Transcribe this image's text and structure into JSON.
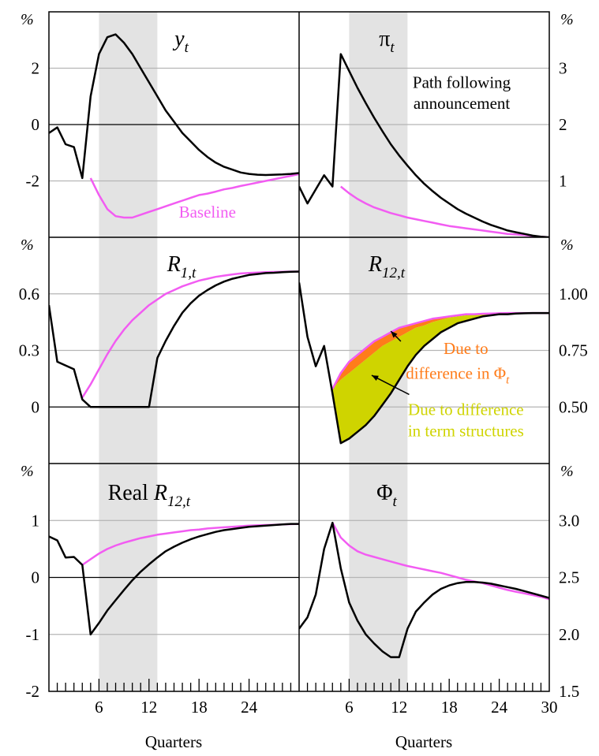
{
  "colors": {
    "path": "#000000",
    "baseline": "#f25cf2",
    "shade": "#e3e3e3",
    "grid": "#b5b5b5",
    "orange": "#ff7c1a",
    "yellow": "#cfd400"
  },
  "x_axis": {
    "label": "Quarters",
    "range": [
      0,
      30
    ],
    "left_ticks": [
      6,
      12,
      18,
      24
    ],
    "right_ticks": [
      6,
      12,
      18,
      24,
      30
    ],
    "minor_tick_step": 1,
    "shaded_range": [
      6,
      13
    ]
  },
  "chart_data": [
    {
      "type": "line",
      "title": "y",
      "subscript": "t",
      "unit": "%",
      "ylim": [
        -4,
        4
      ],
      "yticks": [
        -2,
        0,
        2
      ],
      "x": [
        0,
        1,
        2,
        3,
        4,
        5,
        6,
        7,
        8,
        9,
        10,
        11,
        12,
        13,
        14,
        15,
        16,
        17,
        18,
        19,
        20,
        21,
        22,
        23,
        24,
        25,
        26,
        27,
        28,
        29,
        30
      ],
      "series": [
        {
          "name": "",
          "style": "path",
          "values": [
            -0.3,
            -0.1,
            -0.7,
            -0.8,
            -1.9,
            1.0,
            2.5,
            3.1,
            3.2,
            2.9,
            2.5,
            2.0,
            1.5,
            1.0,
            0.5,
            0.1,
            -0.3,
            -0.6,
            -0.9,
            -1.15,
            -1.35,
            -1.5,
            -1.6,
            -1.7,
            -1.75,
            -1.78,
            -1.79,
            -1.78,
            -1.77,
            -1.75,
            -1.72
          ]
        },
        {
          "name": "Baseline",
          "style": "baseline",
          "values": [
            null,
            null,
            null,
            null,
            null,
            -1.9,
            -2.5,
            -3.0,
            -3.25,
            -3.3,
            -3.3,
            -3.2,
            -3.1,
            -3.0,
            -2.9,
            -2.8,
            -2.7,
            -2.6,
            -2.5,
            -2.45,
            -2.38,
            -2.3,
            -2.25,
            -2.18,
            -2.12,
            -2.06,
            -2.0,
            -1.94,
            -1.88,
            -1.82,
            -1.76
          ]
        }
      ],
      "annotations": [
        {
          "text": "Baseline",
          "x": 19,
          "y": -3.3,
          "color": "baseline"
        }
      ]
    },
    {
      "type": "line",
      "title": "π",
      "subscript": "t",
      "unit": "%",
      "ylim": [
        0,
        4
      ],
      "yticks": [
        1,
        2,
        3
      ],
      "x": [
        0,
        1,
        2,
        3,
        4,
        5,
        6,
        7,
        8,
        9,
        10,
        11,
        12,
        13,
        14,
        15,
        16,
        17,
        18,
        19,
        20,
        21,
        22,
        23,
        24,
        25,
        26,
        27,
        28,
        29,
        30
      ],
      "series": [
        {
          "name": "",
          "style": "path",
          "values": [
            0.9,
            0.6,
            0.85,
            1.1,
            0.9,
            3.25,
            2.95,
            2.65,
            2.38,
            2.12,
            1.88,
            1.65,
            1.45,
            1.27,
            1.1,
            0.95,
            0.82,
            0.7,
            0.6,
            0.5,
            0.42,
            0.35,
            0.28,
            0.22,
            0.17,
            0.12,
            0.09,
            0.06,
            0.03,
            0.01,
            0.0
          ]
        },
        {
          "name": "",
          "style": "baseline",
          "values": [
            null,
            null,
            null,
            null,
            null,
            0.9,
            0.78,
            0.68,
            0.6,
            0.53,
            0.48,
            0.43,
            0.39,
            0.35,
            0.32,
            0.29,
            0.26,
            0.23,
            0.2,
            0.18,
            0.16,
            0.14,
            0.12,
            0.1,
            0.08,
            0.06,
            0.05,
            0.04,
            0.02,
            0.01,
            0.0
          ]
        }
      ],
      "annotations": [
        {
          "text": "Path following",
          "x": 19.5,
          "y": 2.65,
          "color": "path"
        },
        {
          "text": "announcement",
          "x": 19.5,
          "y": 2.28,
          "color": "path"
        }
      ]
    },
    {
      "type": "line",
      "title": "R",
      "subscript": "1,t",
      "unit": "%",
      "ylim": [
        -0.3,
        0.9
      ],
      "yticks": [
        0.0,
        0.3,
        0.6
      ],
      "x": [
        0,
        1,
        2,
        3,
        4,
        5,
        6,
        7,
        8,
        9,
        10,
        11,
        12,
        13,
        14,
        15,
        16,
        17,
        18,
        19,
        20,
        21,
        22,
        23,
        24,
        25,
        26,
        27,
        28,
        29,
        30
      ],
      "series": [
        {
          "name": "",
          "style": "path",
          "values": [
            0.54,
            0.24,
            0.22,
            0.2,
            0.04,
            0.0,
            0.0,
            0.0,
            0.0,
            0.0,
            0.0,
            0.0,
            0.0,
            0.26,
            0.35,
            0.43,
            0.5,
            0.55,
            0.59,
            0.62,
            0.645,
            0.665,
            0.68,
            0.69,
            0.7,
            0.705,
            0.71,
            0.712,
            0.715,
            0.717,
            0.718
          ]
        },
        {
          "name": "",
          "style": "baseline",
          "values": [
            null,
            null,
            null,
            null,
            0.05,
            0.12,
            0.2,
            0.28,
            0.35,
            0.41,
            0.46,
            0.5,
            0.54,
            0.57,
            0.6,
            0.62,
            0.64,
            0.655,
            0.67,
            0.68,
            0.69,
            0.697,
            0.703,
            0.708,
            0.711,
            0.713,
            0.715,
            0.716,
            0.717,
            0.718,
            0.718
          ]
        }
      ],
      "annotations": []
    },
    {
      "type": "area",
      "title": "R",
      "subscript": "12,t",
      "unit": "%",
      "ylim": [
        0.25,
        1.25
      ],
      "yticks": [
        0.5,
        0.75,
        1.0
      ],
      "ytick_labels": [
        "0.50",
        "0.75",
        "1.00"
      ],
      "x": [
        0,
        1,
        2,
        3,
        4,
        5,
        6,
        7,
        8,
        9,
        10,
        11,
        12,
        13,
        14,
        15,
        16,
        17,
        18,
        19,
        20,
        21,
        22,
        23,
        24,
        25,
        26,
        27,
        28,
        29,
        30
      ],
      "series": [
        {
          "name": "",
          "style": "path",
          "values": [
            1.05,
            0.81,
            0.68,
            0.77,
            0.56,
            0.34,
            0.36,
            0.39,
            0.42,
            0.46,
            0.51,
            0.56,
            0.62,
            0.68,
            0.73,
            0.77,
            0.8,
            0.83,
            0.85,
            0.87,
            0.88,
            0.89,
            0.9,
            0.905,
            0.91,
            0.91,
            0.913,
            0.914,
            0.915,
            0.915,
            0.915
          ]
        },
        {
          "name": "",
          "style": "baseline",
          "values": [
            null,
            null,
            null,
            null,
            0.58,
            0.65,
            0.7,
            0.73,
            0.76,
            0.79,
            0.81,
            0.83,
            0.85,
            0.86,
            0.87,
            0.88,
            0.89,
            0.895,
            0.9,
            0.905,
            0.91,
            0.91,
            0.912,
            0.913,
            0.914,
            0.915,
            0.915,
            0.915,
            0.915,
            0.915,
            0.915
          ]
        },
        {
          "name": "",
          "style": "mid",
          "values": [
            null,
            null,
            null,
            null,
            0.58,
            0.62,
            0.65,
            0.68,
            0.71,
            0.74,
            0.77,
            0.79,
            0.81,
            0.83,
            0.85,
            0.86,
            0.875,
            0.885,
            0.895,
            0.9,
            0.905,
            0.908,
            0.91,
            0.912,
            0.913,
            0.914,
            0.915,
            0.915,
            0.915,
            0.915,
            0.915
          ]
        }
      ],
      "annotations": [
        {
          "text": "Due to",
          "x": 20,
          "y": 0.735,
          "color": "orange"
        },
        {
          "text": "difference in Φ",
          "sub": "t",
          "x": 19,
          "y": 0.625,
          "color": "orange"
        },
        {
          "text": "Due to difference",
          "x": 20,
          "y": 0.465,
          "color": "yellow"
        },
        {
          "text": "in term structures",
          "x": 20,
          "y": 0.37,
          "color": "yellow"
        }
      ],
      "arrows": [
        {
          "from": [
            12.2,
            0.79
          ],
          "to": [
            11.0,
            0.835
          ]
        },
        {
          "from": [
            13.2,
            0.555
          ],
          "to": [
            8.7,
            0.64
          ]
        }
      ]
    },
    {
      "type": "line",
      "title": "Real R",
      "subscript": "12,t",
      "unit": "%",
      "ylim": [
        -2,
        2
      ],
      "yticks": [
        -2,
        -1,
        0,
        1
      ],
      "x": [
        0,
        1,
        2,
        3,
        4,
        5,
        6,
        7,
        8,
        9,
        10,
        11,
        12,
        13,
        14,
        15,
        16,
        17,
        18,
        19,
        20,
        21,
        22,
        23,
        24,
        25,
        26,
        27,
        28,
        29,
        30
      ],
      "series": [
        {
          "name": "",
          "style": "path",
          "values": [
            0.72,
            0.65,
            0.35,
            0.36,
            0.22,
            -1.0,
            -0.8,
            -0.58,
            -0.4,
            -0.22,
            -0.05,
            0.1,
            0.23,
            0.35,
            0.46,
            0.54,
            0.61,
            0.67,
            0.72,
            0.76,
            0.8,
            0.83,
            0.85,
            0.87,
            0.89,
            0.9,
            0.91,
            0.92,
            0.93,
            0.94,
            0.94
          ]
        },
        {
          "name": "",
          "style": "baseline",
          "values": [
            null,
            null,
            null,
            null,
            0.22,
            0.32,
            0.42,
            0.5,
            0.56,
            0.61,
            0.65,
            0.69,
            0.72,
            0.75,
            0.77,
            0.79,
            0.81,
            0.83,
            0.84,
            0.86,
            0.87,
            0.88,
            0.89,
            0.9,
            0.91,
            0.915,
            0.92,
            0.925,
            0.93,
            0.935,
            0.94
          ]
        }
      ],
      "annotations": []
    },
    {
      "type": "line",
      "title": "Φ",
      "subscript": "t",
      "unit": "%",
      "ylim": [
        1.5,
        3.5
      ],
      "yticks": [
        1.5,
        2.0,
        2.5,
        3.0
      ],
      "ytick_labels": [
        "1.5",
        "2.0",
        "2.5",
        "3.0"
      ],
      "x": [
        0,
        1,
        2,
        3,
        4,
        5,
        6,
        7,
        8,
        9,
        10,
        11,
        12,
        13,
        14,
        15,
        16,
        17,
        18,
        19,
        20,
        21,
        22,
        23,
        24,
        25,
        26,
        27,
        28,
        29,
        30
      ],
      "series": [
        {
          "name": "",
          "style": "path",
          "values": [
            2.05,
            2.15,
            2.35,
            2.75,
            2.98,
            2.58,
            2.28,
            2.12,
            2.0,
            1.92,
            1.85,
            1.8,
            1.8,
            2.05,
            2.2,
            2.28,
            2.35,
            2.4,
            2.43,
            2.45,
            2.46,
            2.46,
            2.455,
            2.445,
            2.43,
            2.415,
            2.4,
            2.38,
            2.36,
            2.34,
            2.32
          ]
        },
        {
          "name": "",
          "style": "baseline",
          "values": [
            null,
            null,
            null,
            null,
            2.98,
            2.85,
            2.78,
            2.73,
            2.7,
            2.68,
            2.66,
            2.64,
            2.62,
            2.6,
            2.585,
            2.57,
            2.555,
            2.54,
            2.52,
            2.5,
            2.48,
            2.465,
            2.45,
            2.43,
            2.41,
            2.39,
            2.375,
            2.36,
            2.345,
            2.33,
            2.31
          ]
        }
      ],
      "annotations": []
    }
  ]
}
